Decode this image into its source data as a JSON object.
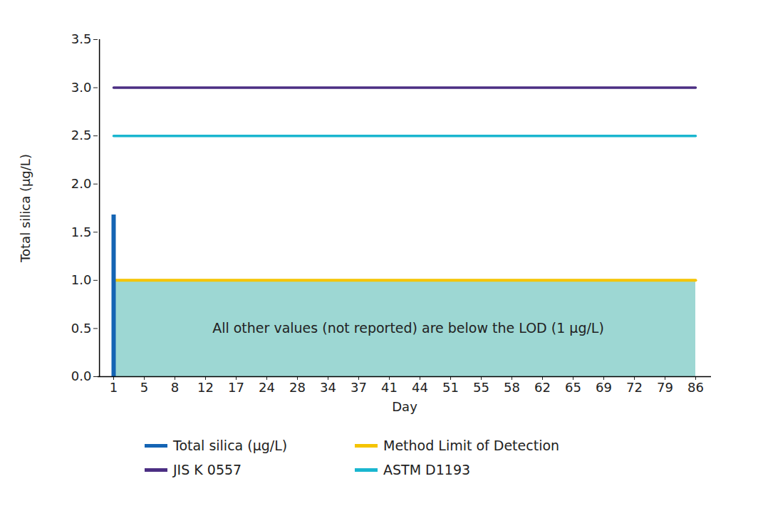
{
  "chart_data": {
    "type": "bar",
    "x_label": "Day",
    "y_label": "Total silica (µg/L)",
    "categories": [
      1,
      5,
      8,
      12,
      17,
      24,
      28,
      34,
      37,
      41,
      44,
      51,
      55,
      58,
      62,
      65,
      69,
      72,
      79,
      86
    ],
    "series": [
      {
        "name": "Total silica (µg/L)",
        "type": "bar",
        "color": "#1464b4",
        "values": [
          1.68,
          null,
          null,
          null,
          null,
          null,
          null,
          null,
          null,
          null,
          null,
          null,
          null,
          null,
          null,
          null,
          null,
          null,
          null,
          null
        ]
      },
      {
        "name": "Method Limit of Detection",
        "type": "area",
        "color": "#f5c400",
        "values": [
          1,
          1,
          1,
          1,
          1,
          1,
          1,
          1,
          1,
          1,
          1,
          1,
          1,
          1,
          1,
          1,
          1,
          1,
          1,
          1
        ]
      },
      {
        "name": "JIS K 0557",
        "type": "line",
        "color": "#4b2e83",
        "values": [
          3,
          3,
          3,
          3,
          3,
          3,
          3,
          3,
          3,
          3,
          3,
          3,
          3,
          3,
          3,
          3,
          3,
          3,
          3,
          3
        ]
      },
      {
        "name": "ASTM D1193",
        "type": "line",
        "color": "#1ab6cf",
        "values": [
          2.5,
          2.5,
          2.5,
          2.5,
          2.5,
          2.5,
          2.5,
          2.5,
          2.5,
          2.5,
          2.5,
          2.5,
          2.5,
          2.5,
          2.5,
          2.5,
          2.5,
          2.5,
          2.5,
          2.5
        ]
      }
    ],
    "annotation": "All other values (not reported) are below the LOD (1 µg/L)",
    "ylim": [
      0,
      3.5
    ],
    "yticks": [
      {
        "value": 0,
        "label": "0.0"
      },
      0.5,
      {
        "value": 1,
        "label": "1.0"
      },
      1.5,
      {
        "value": 2,
        "label": "2.0"
      },
      2.5,
      {
        "value": 3,
        "label": "3.0"
      },
      3.5
    ],
    "legend": "bottom",
    "grid": false
  }
}
